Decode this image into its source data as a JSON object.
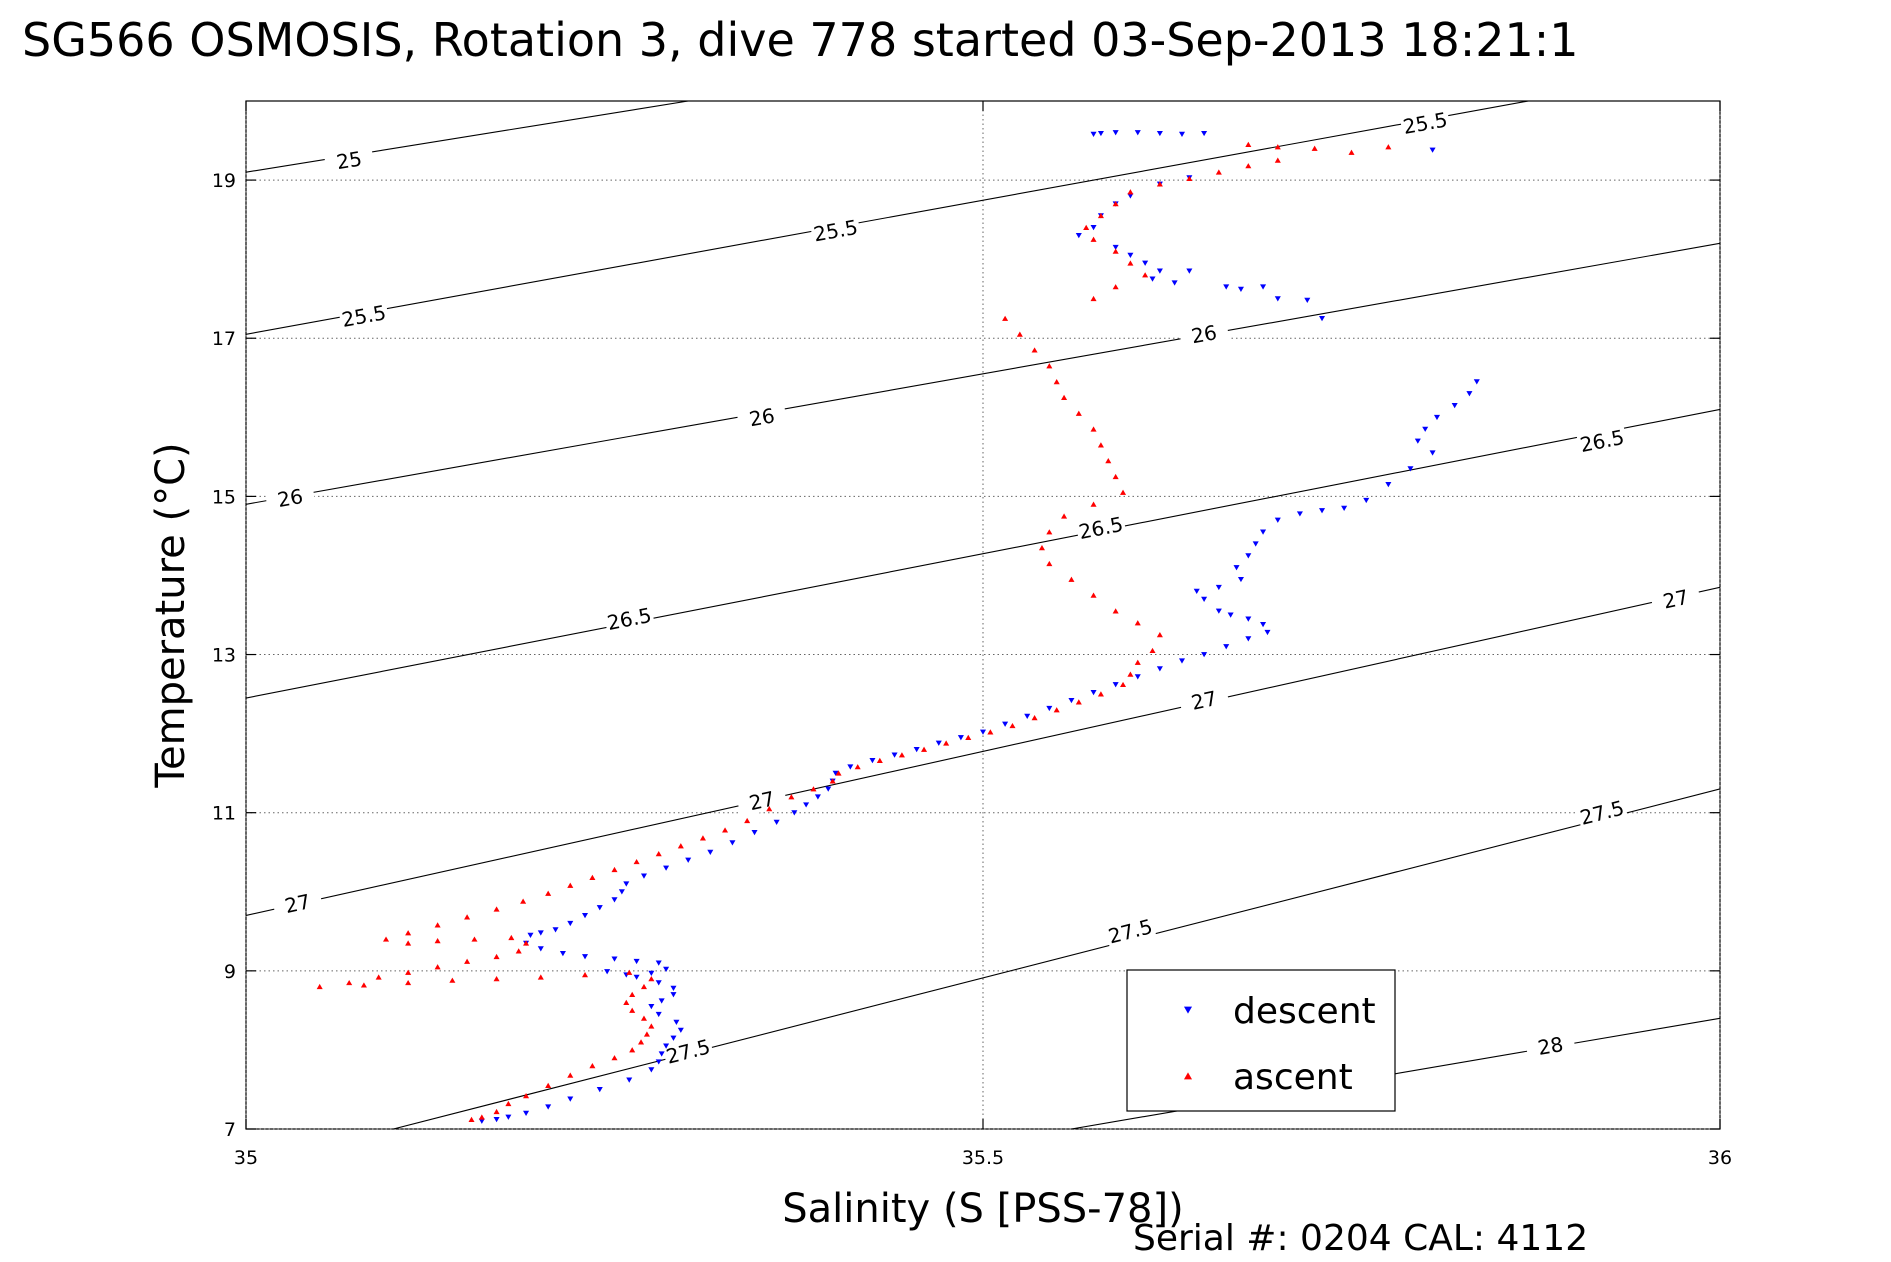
{
  "chart_data": {
    "type": "scatter",
    "title": "SG566 OSMOSIS, Rotation 3, dive 778 started 03-Sep-2013 18:21:1",
    "xlabel": "Salinity (S [PSS-78])",
    "ylabel": "Temperature (°C)",
    "xlim": [
      35,
      36
    ],
    "ylim": [
      7,
      20
    ],
    "x_ticks": [
      "35",
      "35.5",
      "36"
    ],
    "y_ticks": [
      "7",
      "9",
      "11",
      "13",
      "15",
      "17",
      "19"
    ],
    "grid": true,
    "legend_position": "bottom-right",
    "footer": "Serial #: 0204  CAL: 4112",
    "density_contours": [
      {
        "label": "25",
        "points": [
          [
            35.0,
            19.1
          ],
          [
            35.3,
            20.0
          ]
        ],
        "label_at": [
          35.07,
          19.25
        ]
      },
      {
        "label": "25.5",
        "points": [
          [
            35.0,
            17.05
          ],
          [
            35.87,
            20.0
          ]
        ],
        "label_at": [
          35.08,
          17.28
        ],
        "label_at_2": [
          35.4,
          18.36
        ],
        "label_at_3": [
          35.8,
          19.72
        ]
      },
      {
        "label": "26",
        "points": [
          [
            35.0,
            14.9
          ],
          [
            36.0,
            18.2
          ]
        ],
        "label_at": [
          35.03,
          14.98
        ],
        "label_at_2": [
          35.35,
          16.0
        ],
        "label_at_3": [
          35.65,
          17.05
        ]
      },
      {
        "label": "26.5",
        "points": [
          [
            35.0,
            12.45
          ],
          [
            36.0,
            16.1
          ]
        ],
        "label_at": [
          35.26,
          13.45
        ],
        "label_at_2": [
          35.58,
          14.6
        ],
        "label_at_3": [
          35.92,
          15.7
        ]
      },
      {
        "label": "27",
        "points": [
          [
            35.0,
            9.7
          ],
          [
            36.0,
            13.85
          ]
        ],
        "label_at": [
          35.035,
          9.85
        ],
        "label_at_2": [
          35.35,
          11.15
        ],
        "label_at_3": [
          35.65,
          12.42
        ],
        "label_at_4": [
          35.97,
          13.7
        ]
      },
      {
        "label": "27.5",
        "points": [
          [
            35.1,
            7.0
          ],
          [
            36.0,
            11.3
          ]
        ],
        "label_at": [
          35.3,
          7.98
        ],
        "label_at_2": [
          35.6,
          9.5
        ],
        "label_at_3": [
          35.92,
          11.0
        ]
      },
      {
        "label": "28",
        "points": [
          [
            35.56,
            7.0
          ],
          [
            36.0,
            8.4
          ]
        ],
        "label_at": [
          35.885,
          8.05
        ]
      }
    ],
    "series": [
      {
        "name": "descent",
        "color": "#0000ff",
        "marker": "triangle-down",
        "points": [
          [
            35.575,
            19.58
          ],
          [
            35.58,
            19.59
          ],
          [
            35.59,
            19.6
          ],
          [
            35.605,
            19.6
          ],
          [
            35.62,
            19.59
          ],
          [
            35.635,
            19.58
          ],
          [
            35.65,
            19.59
          ],
          [
            35.805,
            19.38
          ],
          [
            35.64,
            19.03
          ],
          [
            35.62,
            18.95
          ],
          [
            35.6,
            18.8
          ],
          [
            35.59,
            18.7
          ],
          [
            35.58,
            18.55
          ],
          [
            35.575,
            18.4
          ],
          [
            35.565,
            18.3
          ],
          [
            35.59,
            18.15
          ],
          [
            35.6,
            18.05
          ],
          [
            35.61,
            17.95
          ],
          [
            35.62,
            17.85
          ],
          [
            35.615,
            17.75
          ],
          [
            35.63,
            17.7
          ],
          [
            35.64,
            17.85
          ],
          [
            35.665,
            17.65
          ],
          [
            35.675,
            17.62
          ],
          [
            35.69,
            17.65
          ],
          [
            35.7,
            17.5
          ],
          [
            35.72,
            17.48
          ],
          [
            35.73,
            17.25
          ],
          [
            35.835,
            16.45
          ],
          [
            35.83,
            16.3
          ],
          [
            35.82,
            16.15
          ],
          [
            35.808,
            16.0
          ],
          [
            35.8,
            15.85
          ],
          [
            35.795,
            15.7
          ],
          [
            35.805,
            15.55
          ],
          [
            35.79,
            15.35
          ],
          [
            35.775,
            15.15
          ],
          [
            35.76,
            14.95
          ],
          [
            35.745,
            14.85
          ],
          [
            35.73,
            14.82
          ],
          [
            35.715,
            14.78
          ],
          [
            35.7,
            14.7
          ],
          [
            35.69,
            14.55
          ],
          [
            35.685,
            14.4
          ],
          [
            35.68,
            14.25
          ],
          [
            35.672,
            14.1
          ],
          [
            35.675,
            13.95
          ],
          [
            35.66,
            13.85
          ],
          [
            35.645,
            13.8
          ],
          [
            35.65,
            13.7
          ],
          [
            35.66,
            13.55
          ],
          [
            35.668,
            13.5
          ],
          [
            35.68,
            13.45
          ],
          [
            35.69,
            13.38
          ],
          [
            35.693,
            13.28
          ],
          [
            35.68,
            13.2
          ],
          [
            35.665,
            13.1
          ],
          [
            35.65,
            13.0
          ],
          [
            35.635,
            12.92
          ],
          [
            35.62,
            12.82
          ],
          [
            35.605,
            12.72
          ],
          [
            35.59,
            12.62
          ],
          [
            35.575,
            12.52
          ],
          [
            35.56,
            12.42
          ],
          [
            35.545,
            12.32
          ],
          [
            35.53,
            12.22
          ],
          [
            35.515,
            12.12
          ],
          [
            35.5,
            12.02
          ],
          [
            35.485,
            11.95
          ],
          [
            35.47,
            11.88
          ],
          [
            35.455,
            11.8
          ],
          [
            35.44,
            11.73
          ],
          [
            35.425,
            11.66
          ],
          [
            35.41,
            11.58
          ],
          [
            35.4,
            11.5
          ],
          [
            35.398,
            11.4
          ],
          [
            35.395,
            11.3
          ],
          [
            35.388,
            11.2
          ],
          [
            35.38,
            11.1
          ],
          [
            35.372,
            11.0
          ],
          [
            35.36,
            10.88
          ],
          [
            35.345,
            10.75
          ],
          [
            35.33,
            10.62
          ],
          [
            35.315,
            10.5
          ],
          [
            35.3,
            10.4
          ],
          [
            35.285,
            10.3
          ],
          [
            35.27,
            10.2
          ],
          [
            35.258,
            10.1
          ],
          [
            35.255,
            10.0
          ],
          [
            35.25,
            9.9
          ],
          [
            35.24,
            9.8
          ],
          [
            35.23,
            9.7
          ],
          [
            35.22,
            9.6
          ],
          [
            35.21,
            9.52
          ],
          [
            35.2,
            9.48
          ],
          [
            35.193,
            9.45
          ],
          [
            35.19,
            9.35
          ],
          [
            35.2,
            9.28
          ],
          [
            35.215,
            9.22
          ],
          [
            35.23,
            9.18
          ],
          [
            35.25,
            9.15
          ],
          [
            35.265,
            9.12
          ],
          [
            35.28,
            9.1
          ],
          [
            35.285,
            9.02
          ],
          [
            35.275,
            8.97
          ],
          [
            35.258,
            8.95
          ],
          [
            35.245,
            8.99
          ],
          [
            35.265,
            8.92
          ],
          [
            35.28,
            8.85
          ],
          [
            35.29,
            8.78
          ],
          [
            35.29,
            8.7
          ],
          [
            35.282,
            8.62
          ],
          [
            35.275,
            8.55
          ],
          [
            35.28,
            8.45
          ],
          [
            35.292,
            8.35
          ],
          [
            35.295,
            8.25
          ],
          [
            35.29,
            8.15
          ],
          [
            35.285,
            8.05
          ],
          [
            35.282,
            7.95
          ],
          [
            35.28,
            7.85
          ],
          [
            35.275,
            7.75
          ],
          [
            35.26,
            7.62
          ],
          [
            35.24,
            7.5
          ],
          [
            35.22,
            7.38
          ],
          [
            35.205,
            7.28
          ],
          [
            35.19,
            7.2
          ],
          [
            35.178,
            7.15
          ],
          [
            35.17,
            7.12
          ],
          [
            35.16,
            7.1
          ]
        ]
      },
      {
        "name": "ascent",
        "color": "#ff0000",
        "marker": "triangle-up",
        "points": [
          [
            35.68,
            19.45
          ],
          [
            35.7,
            19.42
          ],
          [
            35.725,
            19.4
          ],
          [
            35.75,
            19.35
          ],
          [
            35.775,
            19.42
          ],
          [
            35.7,
            19.25
          ],
          [
            35.68,
            19.18
          ],
          [
            35.66,
            19.1
          ],
          [
            35.64,
            19.02
          ],
          [
            35.62,
            18.95
          ],
          [
            35.6,
            18.85
          ],
          [
            35.59,
            18.7
          ],
          [
            35.58,
            18.55
          ],
          [
            35.57,
            18.4
          ],
          [
            35.575,
            18.25
          ],
          [
            35.59,
            18.1
          ],
          [
            35.6,
            17.95
          ],
          [
            35.61,
            17.8
          ],
          [
            35.59,
            17.65
          ],
          [
            35.575,
            17.5
          ],
          [
            35.515,
            17.25
          ],
          [
            35.525,
            17.05
          ],
          [
            35.535,
            16.85
          ],
          [
            35.545,
            16.65
          ],
          [
            35.55,
            16.45
          ],
          [
            35.555,
            16.25
          ],
          [
            35.565,
            16.05
          ],
          [
            35.575,
            15.85
          ],
          [
            35.58,
            15.65
          ],
          [
            35.585,
            15.45
          ],
          [
            35.59,
            15.25
          ],
          [
            35.595,
            15.05
          ],
          [
            35.575,
            14.9
          ],
          [
            35.555,
            14.75
          ],
          [
            35.545,
            14.55
          ],
          [
            35.54,
            14.35
          ],
          [
            35.545,
            14.15
          ],
          [
            35.56,
            13.95
          ],
          [
            35.575,
            13.75
          ],
          [
            35.59,
            13.55
          ],
          [
            35.605,
            13.4
          ],
          [
            35.62,
            13.25
          ],
          [
            35.615,
            13.05
          ],
          [
            35.605,
            12.9
          ],
          [
            35.6,
            12.75
          ],
          [
            35.595,
            12.62
          ],
          [
            35.58,
            12.5
          ],
          [
            35.565,
            12.4
          ],
          [
            35.55,
            12.3
          ],
          [
            35.535,
            12.2
          ],
          [
            35.52,
            12.1
          ],
          [
            35.505,
            12.02
          ],
          [
            35.49,
            11.95
          ],
          [
            35.475,
            11.88
          ],
          [
            35.46,
            11.8
          ],
          [
            35.445,
            11.73
          ],
          [
            35.43,
            11.66
          ],
          [
            35.415,
            11.58
          ],
          [
            35.402,
            11.5
          ],
          [
            35.398,
            11.4
          ],
          [
            35.385,
            11.3
          ],
          [
            35.37,
            11.2
          ],
          [
            35.355,
            11.05
          ],
          [
            35.34,
            10.9
          ],
          [
            35.325,
            10.78
          ],
          [
            35.31,
            10.68
          ],
          [
            35.295,
            10.58
          ],
          [
            35.28,
            10.48
          ],
          [
            35.265,
            10.38
          ],
          [
            35.25,
            10.28
          ],
          [
            35.235,
            10.18
          ],
          [
            35.22,
            10.08
          ],
          [
            35.205,
            9.98
          ],
          [
            35.188,
            9.88
          ],
          [
            35.17,
            9.78
          ],
          [
            35.15,
            9.68
          ],
          [
            35.13,
            9.58
          ],
          [
            35.11,
            9.48
          ],
          [
            35.095,
            9.4
          ],
          [
            35.11,
            9.35
          ],
          [
            35.13,
            9.38
          ],
          [
            35.155,
            9.4
          ],
          [
            35.18,
            9.42
          ],
          [
            35.19,
            9.35
          ],
          [
            35.185,
            9.25
          ],
          [
            35.17,
            9.18
          ],
          [
            35.15,
            9.12
          ],
          [
            35.13,
            9.05
          ],
          [
            35.11,
            8.98
          ],
          [
            35.09,
            8.92
          ],
          [
            35.07,
            8.85
          ],
          [
            35.05,
            8.8
          ],
          [
            35.08,
            8.82
          ],
          [
            35.11,
            8.85
          ],
          [
            35.14,
            8.88
          ],
          [
            35.17,
            8.9
          ],
          [
            35.2,
            8.92
          ],
          [
            35.23,
            8.95
          ],
          [
            35.26,
            8.98
          ],
          [
            35.275,
            8.9
          ],
          [
            35.27,
            8.8
          ],
          [
            35.262,
            8.7
          ],
          [
            35.258,
            8.6
          ],
          [
            35.262,
            8.5
          ],
          [
            35.27,
            8.4
          ],
          [
            35.275,
            8.3
          ],
          [
            35.272,
            8.2
          ],
          [
            35.268,
            8.1
          ],
          [
            35.262,
            8.0
          ],
          [
            35.25,
            7.9
          ],
          [
            35.235,
            7.8
          ],
          [
            35.22,
            7.68
          ],
          [
            35.205,
            7.55
          ],
          [
            35.19,
            7.42
          ],
          [
            35.178,
            7.32
          ],
          [
            35.17,
            7.22
          ],
          [
            35.16,
            7.15
          ],
          [
            35.153,
            7.12
          ]
        ]
      }
    ]
  }
}
